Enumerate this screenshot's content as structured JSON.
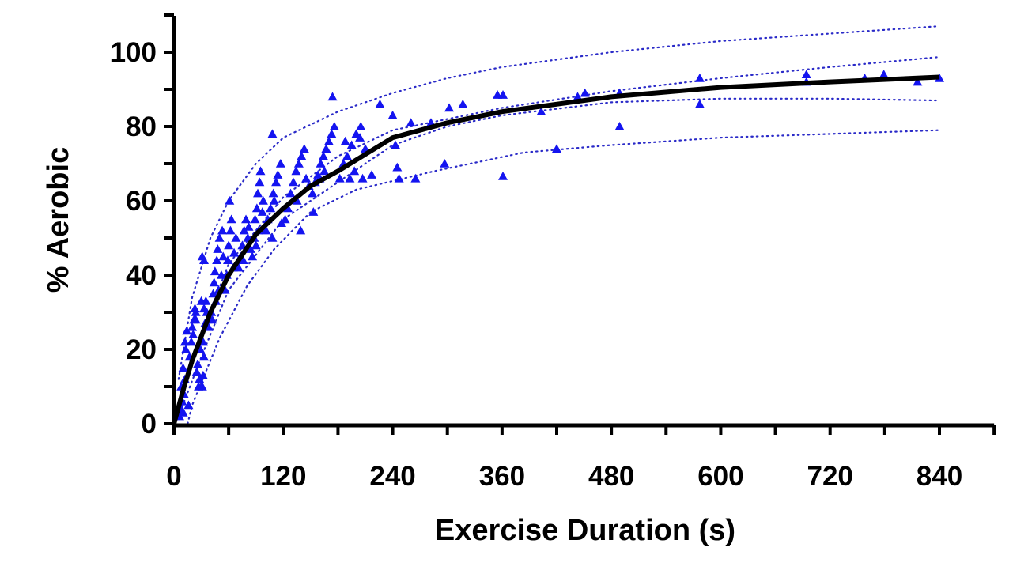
{
  "chart_data": {
    "type": "scatter",
    "title": "",
    "xlabel": "Exercise Duration (s)",
    "ylabel": "% Aerobic",
    "xlim": [
      0,
      900
    ],
    "ylim": [
      0,
      110
    ],
    "xticks": [
      0,
      120,
      240,
      360,
      480,
      600,
      720,
      840
    ],
    "xtick_labels": [
      "0",
      "120",
      "240",
      "360",
      "480",
      "600",
      "720",
      "840"
    ],
    "yticks": [
      0,
      20,
      40,
      60,
      80,
      100
    ],
    "ytick_labels": [
      "0",
      "20",
      "40",
      "60",
      "80",
      "100"
    ],
    "grid": false,
    "legend": "none",
    "colors": {
      "points": "#1414f0",
      "fit": "#000000",
      "bands": "#2a2ac8"
    },
    "marker": "triangle",
    "points": [
      [
        6,
        2
      ],
      [
        8,
        4
      ],
      [
        9,
        6
      ],
      [
        10,
        3
      ],
      [
        11,
        8
      ],
      [
        12,
        12
      ],
      [
        10,
        15
      ],
      [
        13,
        20
      ],
      [
        12,
        22
      ],
      [
        14,
        25
      ],
      [
        8,
        10
      ],
      [
        16,
        5
      ],
      [
        17,
        18
      ],
      [
        19,
        22
      ],
      [
        20,
        26
      ],
      [
        22,
        28
      ],
      [
        24,
        30
      ],
      [
        21,
        24
      ],
      [
        25,
        14
      ],
      [
        27,
        10
      ],
      [
        28,
        12
      ],
      [
        26,
        16
      ],
      [
        29,
        20
      ],
      [
        24,
        28
      ],
      [
        23,
        31
      ],
      [
        30,
        33
      ],
      [
        31,
        10
      ],
      [
        32,
        13
      ],
      [
        33,
        18
      ],
      [
        32,
        22
      ],
      [
        34,
        27
      ],
      [
        33,
        31
      ],
      [
        35,
        33
      ],
      [
        31,
        45
      ],
      [
        33,
        44
      ],
      [
        37,
        28
      ],
      [
        38,
        26
      ],
      [
        36,
        30
      ],
      [
        41,
        30
      ],
      [
        43,
        35
      ],
      [
        44,
        38
      ],
      [
        45,
        41
      ],
      [
        47,
        44
      ],
      [
        48,
        47
      ],
      [
        50,
        50
      ],
      [
        42,
        28
      ],
      [
        46,
        33
      ],
      [
        49,
        36
      ],
      [
        52,
        40
      ],
      [
        53,
        52
      ],
      [
        54,
        45
      ],
      [
        56,
        36
      ],
      [
        58,
        40
      ],
      [
        59,
        44
      ],
      [
        60,
        48
      ],
      [
        62,
        52
      ],
      [
        63,
        55
      ],
      [
        61,
        60
      ],
      [
        65,
        42
      ],
      [
        66,
        46
      ],
      [
        68,
        50
      ],
      [
        71,
        42
      ],
      [
        73,
        45
      ],
      [
        75,
        48
      ],
      [
        77,
        52
      ],
      [
        79,
        55
      ],
      [
        81,
        50
      ],
      [
        82,
        53
      ],
      [
        84,
        47
      ],
      [
        76,
        44
      ],
      [
        86,
        45
      ],
      [
        88,
        50
      ],
      [
        89,
        55
      ],
      [
        91,
        58
      ],
      [
        92,
        62
      ],
      [
        94,
        65
      ],
      [
        95,
        68
      ],
      [
        93,
        52
      ],
      [
        97,
        57
      ],
      [
        98,
        60
      ],
      [
        90,
        48
      ],
      [
        101,
        52
      ],
      [
        103,
        55
      ],
      [
        106,
        58
      ],
      [
        109,
        62
      ],
      [
        112,
        65
      ],
      [
        114,
        67
      ],
      [
        117,
        70
      ],
      [
        110,
        60
      ],
      [
        108,
        50
      ],
      [
        108,
        78
      ],
      [
        118,
        54
      ],
      [
        122,
        55
      ],
      [
        125,
        58
      ],
      [
        128,
        62
      ],
      [
        131,
        65
      ],
      [
        134,
        68
      ],
      [
        137,
        70
      ],
      [
        140,
        72
      ],
      [
        143,
        74
      ],
      [
        135,
        60
      ],
      [
        139,
        52
      ],
      [
        145,
        66
      ],
      [
        148,
        64
      ],
      [
        152,
        62
      ],
      [
        155,
        65
      ],
      [
        158,
        67
      ],
      [
        161,
        70
      ],
      [
        164,
        72
      ],
      [
        167,
        74
      ],
      [
        170,
        76
      ],
      [
        173,
        78
      ],
      [
        176,
        80
      ],
      [
        165,
        68
      ],
      [
        160,
        66
      ],
      [
        153,
        57
      ],
      [
        182,
        66
      ],
      [
        186,
        70
      ],
      [
        190,
        72
      ],
      [
        195,
        75
      ],
      [
        200,
        78
      ],
      [
        205,
        80
      ],
      [
        210,
        74
      ],
      [
        188,
        76
      ],
      [
        193,
        66
      ],
      [
        198,
        68
      ],
      [
        174,
        88
      ],
      [
        204,
        77
      ],
      [
        207,
        66
      ],
      [
        217,
        67
      ],
      [
        226,
        86
      ],
      [
        240,
        83
      ],
      [
        243,
        75
      ],
      [
        245,
        69
      ],
      [
        247,
        66
      ],
      [
        260,
        81
      ],
      [
        265,
        66
      ],
      [
        282,
        81
      ],
      [
        297,
        70
      ],
      [
        302,
        85
      ],
      [
        317,
        86
      ],
      [
        355,
        88.5
      ],
      [
        361,
        88.5
      ],
      [
        361,
        66.6
      ],
      [
        403,
        84
      ],
      [
        420,
        74
      ],
      [
        443,
        88
      ],
      [
        451,
        89
      ],
      [
        489,
        89
      ],
      [
        489,
        80
      ],
      [
        577,
        93
      ],
      [
        577,
        86
      ],
      [
        694,
        94
      ],
      [
        694,
        92
      ],
      [
        758,
        93
      ],
      [
        779,
        94
      ],
      [
        816,
        92
      ],
      [
        840,
        93
      ]
    ],
    "fit_curve": {
      "x": [
        0,
        10,
        20,
        40,
        60,
        90,
        120,
        150,
        180,
        240,
        300,
        360,
        480,
        600,
        720,
        840
      ],
      "y": [
        0,
        9,
        17,
        30,
        40,
        51,
        58,
        64,
        68,
        77,
        81,
        84,
        88,
        90.5,
        92,
        93.3
      ]
    },
    "confidence_band": {
      "x": [
        5,
        30,
        60,
        120,
        180,
        240,
        300,
        360,
        480,
        600,
        720,
        840
      ],
      "upper": [
        6,
        24,
        43,
        61,
        72,
        79,
        82,
        85,
        89.5,
        93,
        96,
        98.7
      ],
      "lower": [
        2,
        18,
        36,
        55,
        65,
        75,
        80,
        83,
        86.5,
        87.5,
        87.5,
        87
      ]
    },
    "prediction_band": {
      "upper": {
        "x": [
          5,
          20,
          40,
          60,
          90,
          120,
          180,
          240,
          300,
          360,
          480,
          600,
          720,
          840
        ],
        "y": [
          12,
          34,
          50,
          60,
          70,
          77,
          84,
          89,
          93,
          96,
          100,
          103,
          105,
          107
        ]
      },
      "lower": {
        "x": [
          15,
          20,
          50,
          80,
          110,
          150,
          200,
          286,
          384,
          480,
          600,
          720,
          840
        ],
        "y": [
          0,
          5,
          23,
          37,
          47,
          57,
          63,
          68,
          73,
          75,
          77,
          78,
          79
        ]
      }
    }
  }
}
